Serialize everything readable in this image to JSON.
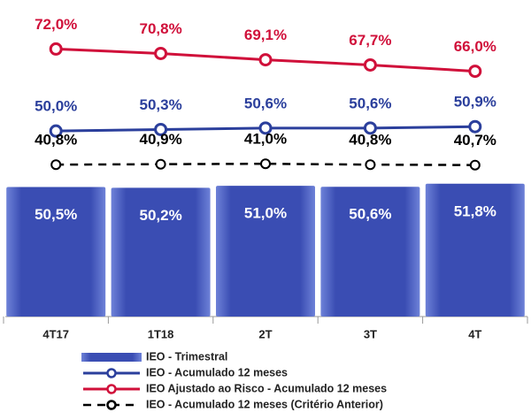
{
  "chart_data": {
    "type": "bar",
    "categories": [
      "4T17",
      "1T18",
      "2T",
      "3T",
      "4T"
    ],
    "series": [
      {
        "name": "IEO - Trimestral",
        "type": "bar",
        "color": "#3a4db3",
        "values": [
          50.5,
          50.2,
          51.0,
          50.6,
          51.8
        ],
        "value_labels": [
          "50,5%",
          "50,2%",
          "51,0%",
          "50,6%",
          "51,8%"
        ]
      },
      {
        "name": "IEO - Acumulado 12 meses",
        "type": "line",
        "color": "#2b3f9c",
        "values": [
          50.0,
          50.3,
          50.6,
          50.6,
          50.9
        ],
        "value_labels": [
          "50,0%",
          "50,3%",
          "50,6%",
          "50,6%",
          "50,9%"
        ]
      },
      {
        "name": "IEO Ajustado ao Risco - Acumulado 12 meses",
        "type": "line",
        "color": "#d0103a",
        "values": [
          72.0,
          70.8,
          69.1,
          67.7,
          66.0
        ],
        "value_labels": [
          "72,0%",
          "70,8%",
          "69,1%",
          "67,7%",
          "66,0%"
        ]
      },
      {
        "name": "IEO - Acumulado 12 meses (Critério Anterior)",
        "type": "line",
        "dashed": true,
        "color": "#000000",
        "values": [
          40.8,
          40.9,
          41.0,
          40.8,
          40.7
        ],
        "value_labels": [
          "40,8%",
          "40,9%",
          "41,0%",
          "40,8%",
          "40,7%"
        ]
      }
    ]
  }
}
